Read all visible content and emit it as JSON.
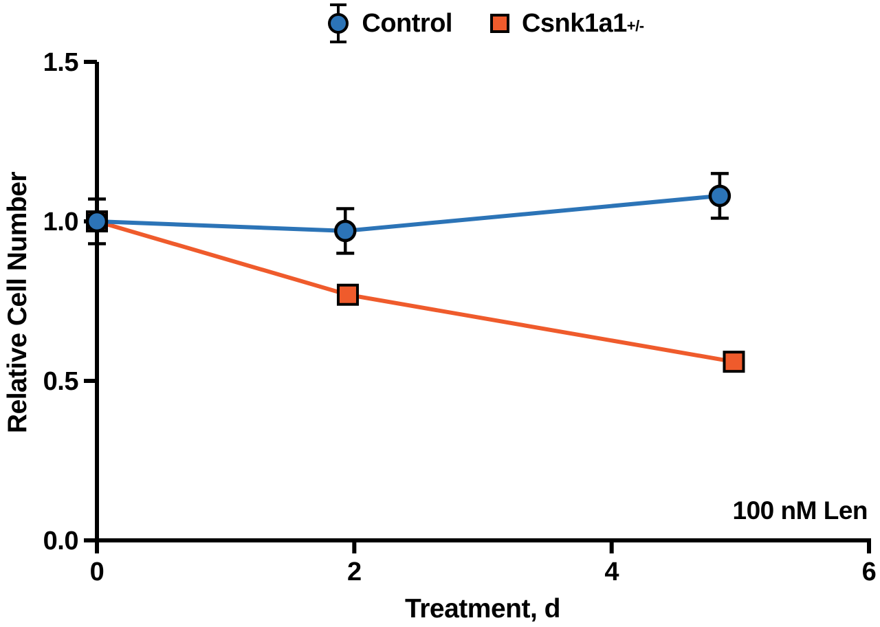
{
  "figure": {
    "background": "#ffffff",
    "text_color": "#000000"
  },
  "legend": {
    "items": [
      {
        "label": "Control",
        "superscript": "",
        "marker": "circle",
        "color": "#2c74b7",
        "error_glyph": true
      },
      {
        "label": "Csnk1a1",
        "superscript": "+/-",
        "marker": "square",
        "color": "#ef5b2c",
        "error_glyph": false
      }
    ]
  },
  "chart_data": {
    "type": "line",
    "title": "",
    "xlabel": "Treatment, d",
    "ylabel": "Relative Cell Number",
    "xlim": [
      0,
      6
    ],
    "ylim": [
      0.0,
      1.5
    ],
    "xticks": {
      "values": [
        0,
        2,
        4,
        6
      ],
      "labels": [
        "0",
        "2",
        "4",
        "6"
      ]
    },
    "yticks": {
      "values": [
        0.0,
        0.5,
        1.0,
        1.5
      ],
      "labels": [
        "0.0",
        "0.5",
        "1.0",
        "1.5"
      ]
    },
    "grid": false,
    "legend_position": "top-center",
    "annotation": {
      "text": "100 nM Len",
      "align": "right",
      "x": 6,
      "y": 0.1
    },
    "series": [
      {
        "name": "Control",
        "marker": "circle",
        "color": "#2c74b7",
        "x": [
          0,
          1.93,
          4.84
        ],
        "y": [
          1.0,
          0.97,
          1.08
        ],
        "yerr": [
          0.07,
          0.07,
          0.07
        ]
      },
      {
        "name": "Csnk1a1+/-",
        "marker": "square",
        "color": "#ef5b2c",
        "x": [
          0,
          1.95,
          4.95
        ],
        "y": [
          1.0,
          0.77,
          0.56
        ],
        "yerr": [
          0,
          0,
          0
        ]
      }
    ]
  }
}
